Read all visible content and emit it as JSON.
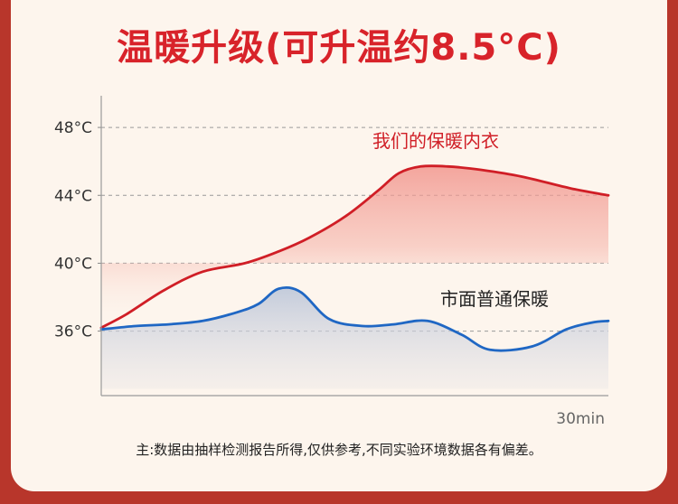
{
  "title": "温暖升级(可升温约8.5°C)",
  "note": "主:数据由抽样检测报告所得,仅供参考,不同实验环境数据各有偏差。",
  "chart_data": {
    "type": "area",
    "title": "温暖升级(可升温约8.5°C)",
    "xlabel": "",
    "ylabel": "",
    "x_end_label": "30min",
    "x_range": [
      0,
      30
    ],
    "ylim": [
      32.2,
      50.4
    ],
    "yticks": [
      {
        "value": 48,
        "label": "48°C"
      },
      {
        "value": 44,
        "label": "44°C"
      },
      {
        "value": 40,
        "label": "40°C"
      },
      {
        "value": 36,
        "label": "36°C"
      }
    ],
    "grid": true,
    "series": [
      {
        "name": "我们的保暖内衣",
        "color": "#d01e26",
        "fill_color": "#f2a19a",
        "x": [
          0,
          1.5,
          3.7,
          6,
          8.5,
          10.5,
          12.3,
          14.5,
          16.4,
          17.6,
          18.9,
          20.5,
          22.5,
          24.9,
          27.8,
          30
        ],
        "y": [
          36.2,
          37.0,
          38.4,
          39.5,
          40.0,
          40.7,
          41.5,
          42.8,
          44.3,
          45.3,
          45.7,
          45.7,
          45.5,
          45.1,
          44.4,
          44.0
        ]
      },
      {
        "name": "市面普通保暖",
        "color": "#1f67c4",
        "fill_color": "#c7cfde",
        "x": [
          0,
          2,
          4,
          6,
          8,
          9.3,
          10.5,
          11.8,
          13.5,
          15.5,
          17.3,
          19.3,
          21.3,
          23.0,
          25.5,
          27.5,
          29.0,
          30
        ],
        "y": [
          36.1,
          36.3,
          36.4,
          36.6,
          37.1,
          37.6,
          38.5,
          38.3,
          36.7,
          36.3,
          36.4,
          36.6,
          35.8,
          34.9,
          35.1,
          36.1,
          36.5,
          36.6
        ]
      }
    ],
    "annotations": [
      {
        "text": "我们的保暖内衣",
        "series": 0
      },
      {
        "text": "市面普通保暖",
        "series": 1
      }
    ]
  }
}
